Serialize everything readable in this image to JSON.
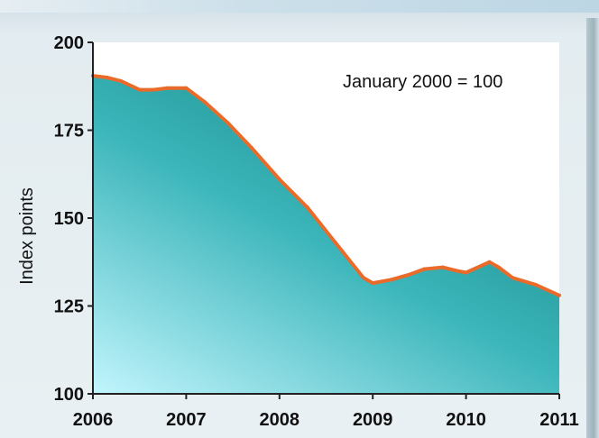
{
  "chart_data": {
    "type": "area",
    "ylabel": "Index points",
    "annotation": "January 2000 = 100",
    "ylim": [
      100,
      200
    ],
    "xlim": [
      2006,
      2011
    ],
    "yticks": [
      100,
      125,
      150,
      175,
      200
    ],
    "xticks": [
      2006,
      2007,
      2008,
      2009,
      2010,
      2011
    ],
    "x": [
      2006.0,
      2006.15,
      2006.3,
      2006.5,
      2006.65,
      2006.8,
      2007.0,
      2007.2,
      2007.45,
      2007.7,
      2008.0,
      2008.3,
      2008.6,
      2008.9,
      2009.0,
      2009.2,
      2009.4,
      2009.55,
      2009.75,
      2009.9,
      2010.0,
      2010.25,
      2010.35,
      2010.5,
      2010.75,
      2011.0
    ],
    "values": [
      190.5,
      190,
      189,
      186.5,
      186.5,
      187,
      187,
      183,
      177,
      170,
      161,
      153,
      143,
      133,
      131.5,
      132.5,
      134,
      135.5,
      136,
      135,
      134.5,
      137.5,
      136,
      133,
      131,
      128
    ],
    "grid": false,
    "colors": {
      "line": "#ea6a2a",
      "fill_top": "#178a87",
      "fill_bottom": "#bff4fc",
      "plot_bg": "#ffffff",
      "axis": "#222222"
    }
  }
}
